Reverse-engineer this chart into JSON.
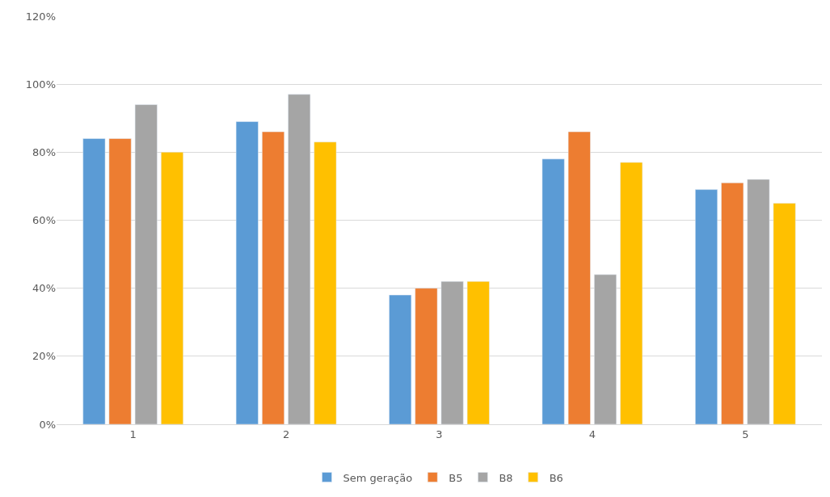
{
  "chart_data": {
    "type": "bar",
    "categories": [
      "1",
      "2",
      "3",
      "4",
      "5"
    ],
    "series": [
      {
        "name": "Sem geração",
        "color": "#5b9bd5",
        "values": [
          84,
          89,
          38,
          78,
          69
        ]
      },
      {
        "name": "B5",
        "color": "#ed7d31",
        "values": [
          84,
          86,
          40,
          86,
          71
        ]
      },
      {
        "name": "B8",
        "color": "#a5a5a5",
        "values": [
          94,
          97,
          42,
          44,
          72
        ]
      },
      {
        "name": "B6",
        "color": "#ffc000",
        "values": [
          80,
          83,
          42,
          77,
          65
        ]
      }
    ],
    "ylim": [
      0,
      120
    ],
    "yticks": [
      {
        "value": 0,
        "label": "0%"
      },
      {
        "value": 20,
        "label": "20%"
      },
      {
        "value": 40,
        "label": "40%"
      },
      {
        "value": 60,
        "label": "60%"
      },
      {
        "value": 80,
        "label": "80%"
      },
      {
        "value": 100,
        "label": "100%"
      },
      {
        "value": 120,
        "label": "120%"
      }
    ],
    "grid": "y",
    "legend": "bottom"
  }
}
